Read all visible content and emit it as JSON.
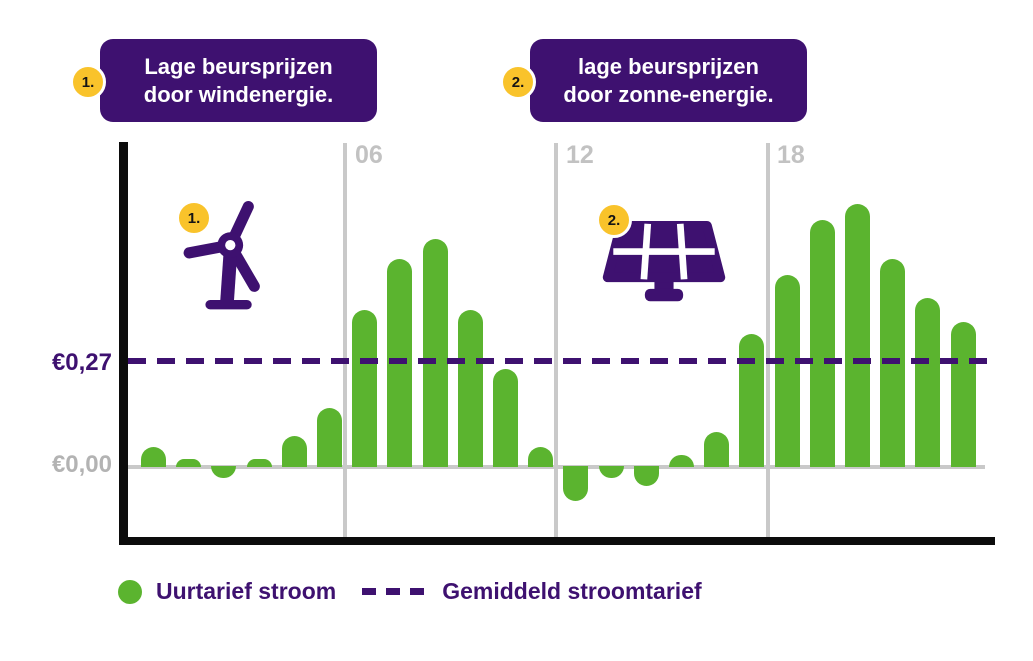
{
  "callouts": [
    {
      "badge": "1.",
      "line1": "Lage beursprijzen",
      "line2": "door windenergie."
    },
    {
      "badge": "2.",
      "line1": "lage beursprijzen",
      "line2": "door zonne-energie."
    }
  ],
  "axis": {
    "y_tick_upper": "€0,27",
    "y_tick_zero": "€0,00",
    "x_ticks": [
      "06",
      "12",
      "18"
    ]
  },
  "legend": {
    "bars_label": "Uurtarief stroom",
    "line_label": "Gemiddeld stroomtarief"
  },
  "icons": {
    "wind": "wind-turbine-icon",
    "solar": "solar-panel-icon"
  },
  "colors": {
    "purple": "#3e1170",
    "green": "#5bb42f",
    "yellow": "#f9c32b",
    "gray_grid": "#c9c9c9",
    "gray_text": "#c2c2c2",
    "gray_zero_label": "#b3b3b3",
    "axis_black": "#0c0c0c"
  },
  "chart_data": {
    "type": "bar",
    "series_name": "Uurtarief stroom",
    "currency_symbol": "€",
    "hours": [
      0,
      1,
      2,
      3,
      4,
      5,
      6,
      7,
      8,
      9,
      10,
      11,
      12,
      13,
      14,
      15,
      16,
      17,
      18,
      19,
      20,
      21,
      22,
      23
    ],
    "values": [
      0.05,
      0.02,
      -0.03,
      0.02,
      0.08,
      0.15,
      0.4,
      0.53,
      0.58,
      0.4,
      0.25,
      0.05,
      -0.09,
      -0.03,
      -0.05,
      0.03,
      0.09,
      0.34,
      0.49,
      0.63,
      0.67,
      0.53,
      0.43,
      0.37
    ],
    "average_line": {
      "label": "Gemiddeld stroomtarief",
      "value": 0.27,
      "style": "dashed"
    },
    "y_ticks": [
      {
        "label": "€0,27",
        "value": 0.27
      },
      {
        "label": "€0,00",
        "value": 0.0
      }
    ],
    "x_gridlines": [
      {
        "label": "06",
        "hour": 6
      },
      {
        "label": "12",
        "hour": 12
      },
      {
        "label": "18",
        "hour": 18
      }
    ],
    "ylim": [
      -0.12,
      0.78
    ],
    "grid": "vertical-only",
    "legend_position": "bottom",
    "annotations": [
      {
        "badge": "1.",
        "icon": "wind-turbine",
        "text": "Lage beursprijzen door windenergie.",
        "near_hours": "01-04"
      },
      {
        "badge": "2.",
        "icon": "solar-panel",
        "text": "lage beursprijzen door zonne-energie.",
        "near_hours": "13-16"
      }
    ]
  }
}
